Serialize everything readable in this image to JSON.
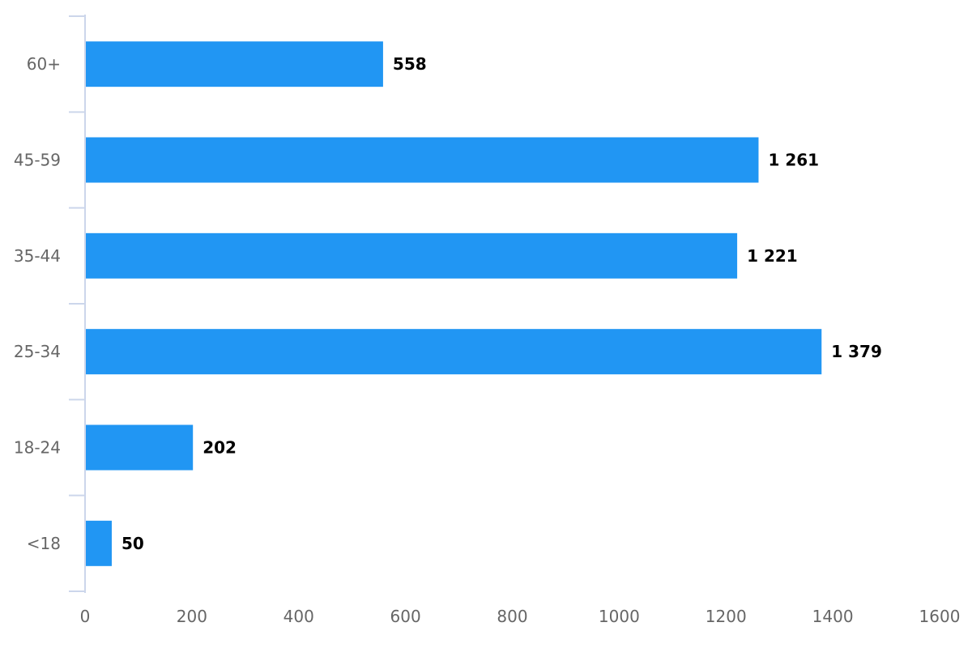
{
  "chart_data": {
    "type": "bar",
    "orientation": "horizontal",
    "categories": [
      "60+",
      "45-59",
      "35-44",
      "25-34",
      "18-24",
      "<18"
    ],
    "values": [
      558,
      1261,
      1221,
      1379,
      202,
      50
    ],
    "data_labels": [
      "558",
      "1 261",
      "1 221",
      "1 379",
      "202",
      "50"
    ],
    "xlim": [
      0,
      1600
    ],
    "x_ticks": [
      0,
      200,
      400,
      600,
      800,
      1000,
      1200,
      1400,
      1600
    ],
    "title": "",
    "xlabel": "",
    "ylabel": "",
    "grid": false,
    "legend": "none",
    "bar_color": "#2196f3",
    "axis_color": "#ccd6eb",
    "label_color": "#666666",
    "data_label_color": "#000000"
  }
}
